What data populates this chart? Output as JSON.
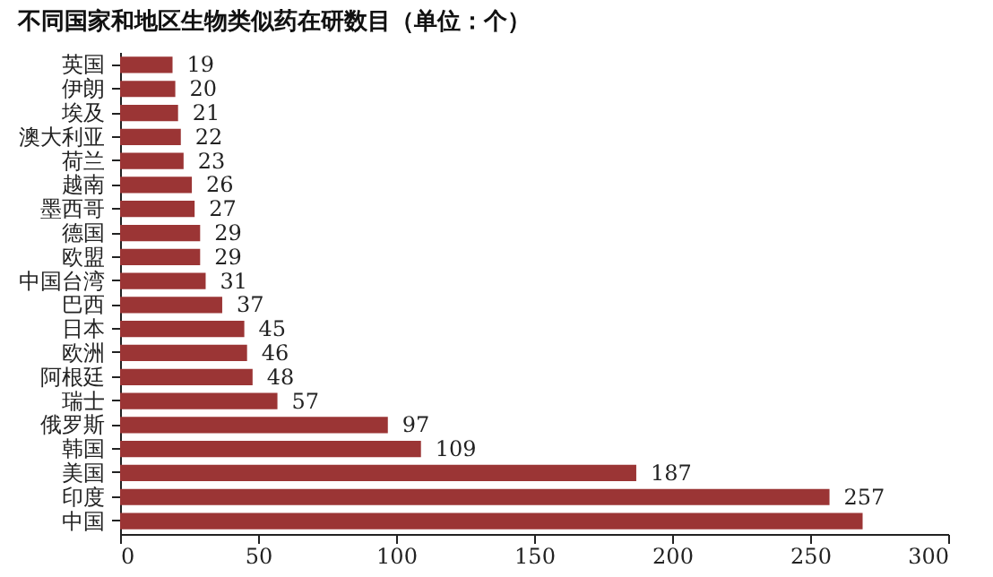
{
  "chart_data": {
    "type": "bar",
    "orientation": "horizontal",
    "title": "不同国家和地区生物类似药在研数目（单位：个）",
    "categories": [
      "英国",
      "伊朗",
      "埃及",
      "澳大利亚",
      "荷兰",
      "越南",
      "墨西哥",
      "德国",
      "欧盟",
      "中国台湾",
      "巴西",
      "日本",
      "欧洲",
      "阿根廷",
      "瑞士",
      "俄罗斯",
      "韩国",
      "美国",
      "印度",
      "中国"
    ],
    "values": [
      19,
      20,
      21,
      22,
      23,
      26,
      27,
      29,
      29,
      31,
      37,
      45,
      46,
      48,
      57,
      97,
      109,
      187,
      257,
      269
    ],
    "value_labels": [
      "19",
      "20",
      "21",
      "22",
      "23",
      "26",
      "27",
      "29",
      "29",
      "31",
      "37",
      "45",
      "46",
      "48",
      "57",
      "97",
      "109",
      "187",
      "257",
      null
    ],
    "color": "#9b3535",
    "xlim": [
      0,
      300
    ],
    "xticks": [
      0,
      50,
      100,
      150,
      200,
      250,
      300
    ],
    "grid": false
  }
}
